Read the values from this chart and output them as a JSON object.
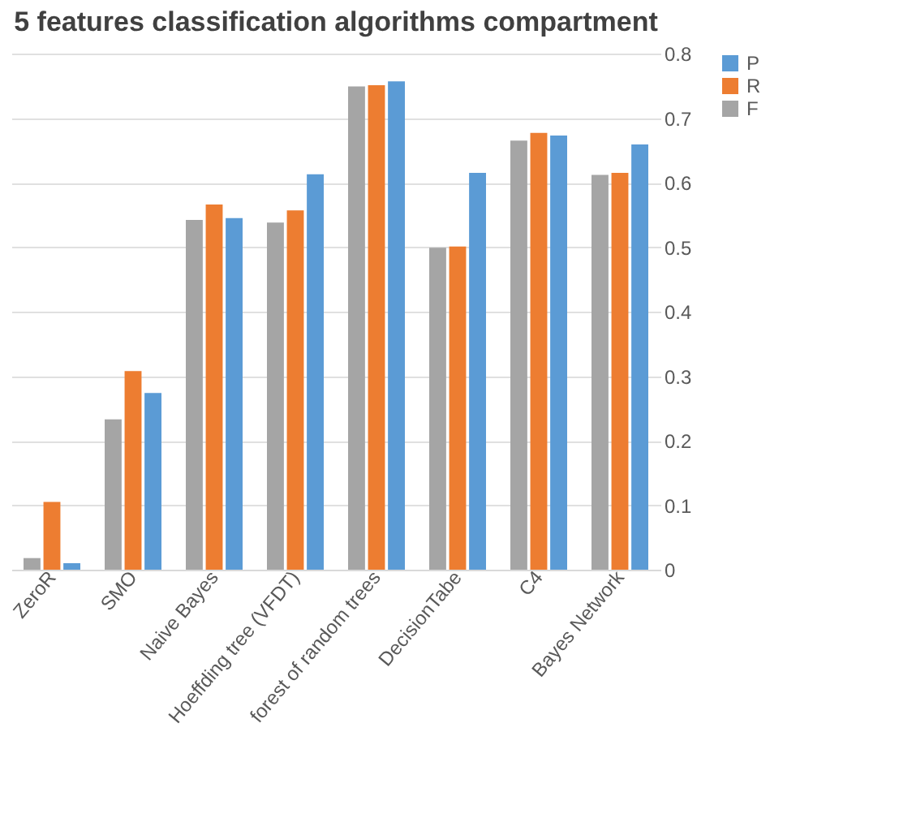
{
  "chart_data": {
    "type": "bar",
    "title": "5 features classification algorithms compartment",
    "categories": [
      "ZeroR",
      "SMO",
      "Naive Bayes",
      "Hoeffding tree (VFDT)",
      "forest of random trees",
      "DecisionTabe",
      "C4",
      "Bayes Network"
    ],
    "series": [
      {
        "name": "F",
        "color": "#a5a5a5",
        "values": [
          0.018,
          0.233,
          0.542,
          0.538,
          0.749,
          0.499,
          0.665,
          0.612
        ]
      },
      {
        "name": "R",
        "color": "#ed7d31",
        "values": [
          0.105,
          0.308,
          0.566,
          0.557,
          0.751,
          0.501,
          0.677,
          0.615
        ]
      },
      {
        "name": "P",
        "color": "#5b9bd5",
        "values": [
          0.01,
          0.274,
          0.545,
          0.613,
          0.757,
          0.615,
          0.673,
          0.659
        ]
      }
    ],
    "ylim": [
      0,
      0.8
    ],
    "yticks": [
      0,
      0.1,
      0.2,
      0.3,
      0.4,
      0.5,
      0.6,
      0.7,
      0.8
    ],
    "grid": "y",
    "legend": "right"
  }
}
